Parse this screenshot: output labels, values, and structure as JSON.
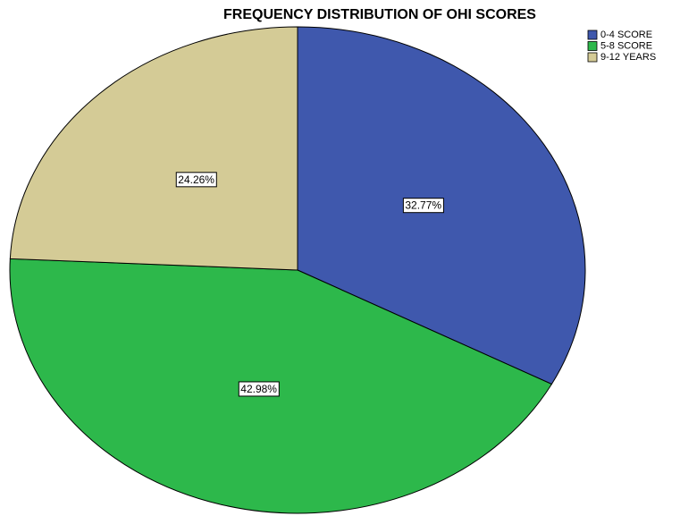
{
  "chart_data": {
    "type": "pie",
    "title": "FREQUENCY DISTRIBUTION OF OHI SCORES",
    "categories": [
      "0-4 SCORE",
      "5-8 SCORE",
      "9-12 YEARS"
    ],
    "values": [
      32.77,
      42.98,
      24.26
    ],
    "value_labels": [
      "32.77%",
      "42.98%",
      "24.26%"
    ],
    "colors": [
      "#3f58ad",
      "#2db84b",
      "#d4cb96"
    ],
    "legend": "upper right"
  }
}
